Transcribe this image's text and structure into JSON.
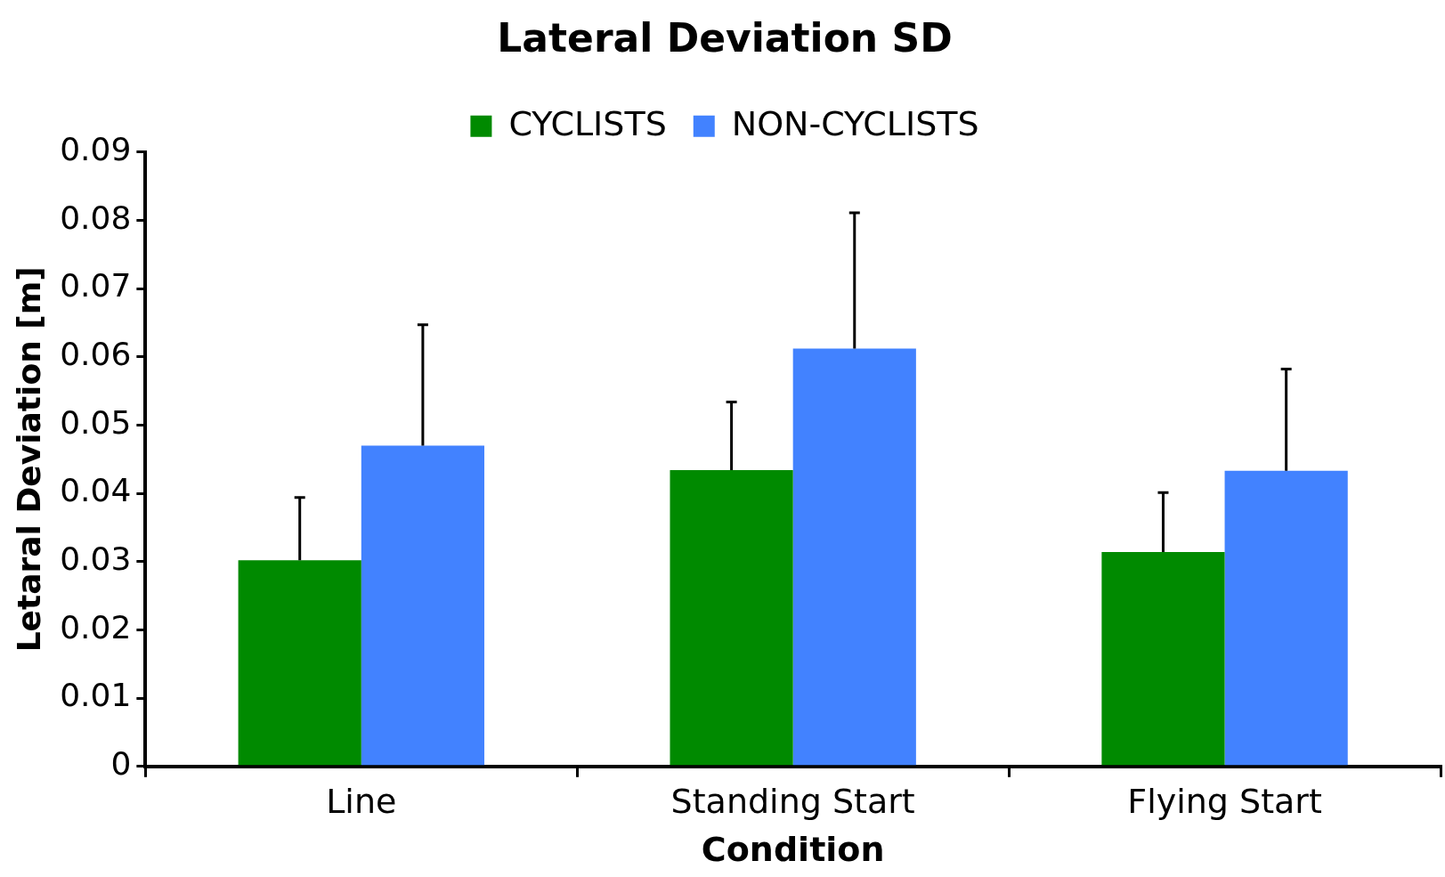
{
  "chart_data": {
    "type": "bar",
    "title": "Lateral Deviation SD",
    "xlabel": "Condition",
    "ylabel": "Letaral Deviation [m]",
    "categories": [
      "Line",
      "Standing Start",
      "Flying Start"
    ],
    "series": [
      {
        "name": "CYCLISTS",
        "color": "#008a00",
        "values": [
          0.0302,
          0.0434,
          0.0314
        ],
        "errors": [
          [
            0.0302,
            0.0394
          ],
          [
            0.0434,
            0.0534
          ],
          [
            0.0314,
            0.0401
          ]
        ]
      },
      {
        "name": "NON-CYCLISTS",
        "color": "#4282ff",
        "values": [
          0.047,
          0.0612,
          0.0433
        ],
        "errors": [
          [
            0.047,
            0.0647
          ],
          [
            0.0612,
            0.0811
          ],
          [
            0.0433,
            0.0582
          ]
        ]
      }
    ],
    "ylim": [
      0,
      0.09
    ],
    "yticks": [
      0,
      0.01,
      0.02,
      0.03,
      0.04,
      0.05,
      0.06,
      0.07,
      0.08,
      0.09
    ],
    "legend": "top",
    "grid": false
  }
}
